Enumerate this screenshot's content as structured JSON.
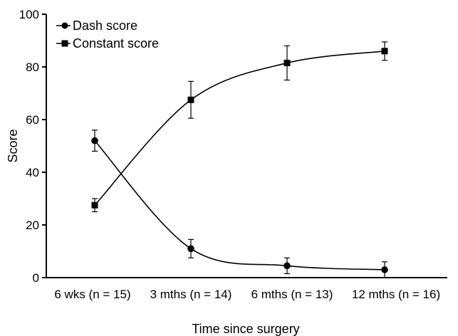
{
  "chart_data": {
    "type": "line",
    "categories": [
      "6 wks (n = 15)",
      "3 mths (n = 14)",
      "6 mths (n = 13)",
      "12 mths (n = 16)"
    ],
    "series": [
      {
        "name": "Dash score",
        "marker": "circle",
        "values": [
          52,
          11,
          4.5,
          3
        ],
        "err": [
          4,
          3.5,
          3,
          3
        ]
      },
      {
        "name": "Constant score",
        "marker": "square",
        "values": [
          27.5,
          67.5,
          81.5,
          86
        ],
        "err": [
          2.5,
          7,
          6.5,
          3.5
        ]
      }
    ],
    "title": "",
    "xlabel": "Time since surgery",
    "ylabel": "Score",
    "ylim": [
      0,
      100
    ],
    "yticks": [
      "0",
      "20",
      "40",
      "60",
      "80",
      "100"
    ],
    "legend": "top-left",
    "grid": false,
    "color": "#000000"
  }
}
